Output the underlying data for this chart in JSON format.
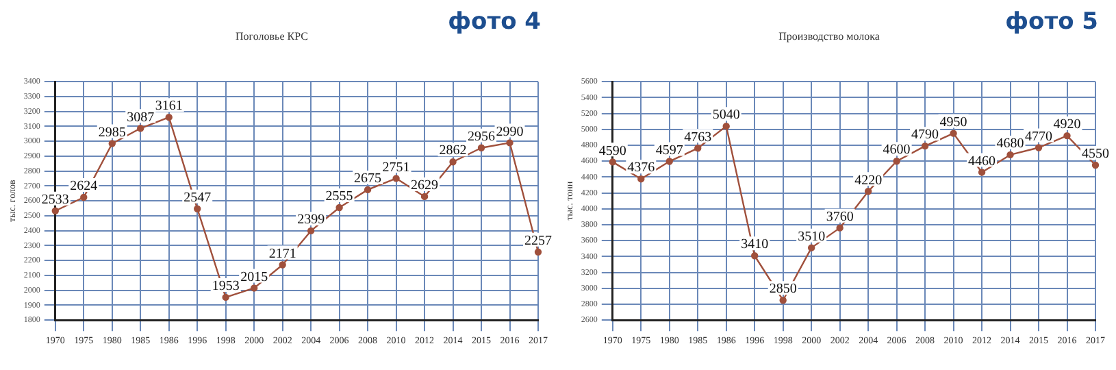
{
  "chart_data": [
    {
      "type": "line",
      "title": "Поголовье КРС",
      "ylabel": "тыс. голов",
      "annotations": [
        "фото 4"
      ],
      "categories": [
        "1970",
        "1975",
        "1980",
        "1985",
        "1986",
        "1996",
        "1998",
        "2000",
        "2002",
        "2004",
        "2006",
        "2008",
        "2010",
        "2012",
        "2014",
        "2015",
        "2016",
        "2017"
      ],
      "series": [
        {
          "color": "#a0503c",
          "values": [
            2533,
            2624,
            2985,
            3087,
            3161,
            2547,
            1953,
            2015,
            2171,
            2399,
            2555,
            2675,
            2751,
            2629,
            2862,
            2956,
            2990,
            2257
          ]
        }
      ],
      "ylim": [
        1800,
        3400
      ],
      "yticks": [
        1800,
        1900,
        2000,
        2100,
        2200,
        2300,
        2400,
        2500,
        2600,
        2700,
        2800,
        2900,
        3000,
        3100,
        3200,
        3300,
        3400
      ],
      "grid": true,
      "legend": false,
      "marker": "circle",
      "data_labels": true
    },
    {
      "type": "line",
      "title": "Производство молока",
      "ylabel": "тыс. тонн",
      "annotations": [
        "фото 5"
      ],
      "categories": [
        "1970",
        "1975",
        "1980",
        "1985",
        "1986",
        "1996",
        "1998",
        "2000",
        "2002",
        "2004",
        "2006",
        "2008",
        "2010",
        "2012",
        "2014",
        "2015",
        "2016",
        "2017"
      ],
      "series": [
        {
          "color": "#a0503c",
          "values": [
            4590,
            4376,
            4597,
            4763,
            5040,
            3410,
            2850,
            3510,
            3760,
            4220,
            4600,
            4790,
            4950,
            4460,
            4680,
            4770,
            4920,
            4550
          ]
        }
      ],
      "ylim": [
        2600,
        5600
      ],
      "yticks": [
        2600,
        2800,
        3000,
        3200,
        3400,
        3600,
        3800,
        4000,
        4200,
        4400,
        4600,
        4800,
        5000,
        5200,
        5400,
        5600
      ],
      "grid": true,
      "legend": false,
      "marker": "circle",
      "data_labels": true
    }
  ]
}
